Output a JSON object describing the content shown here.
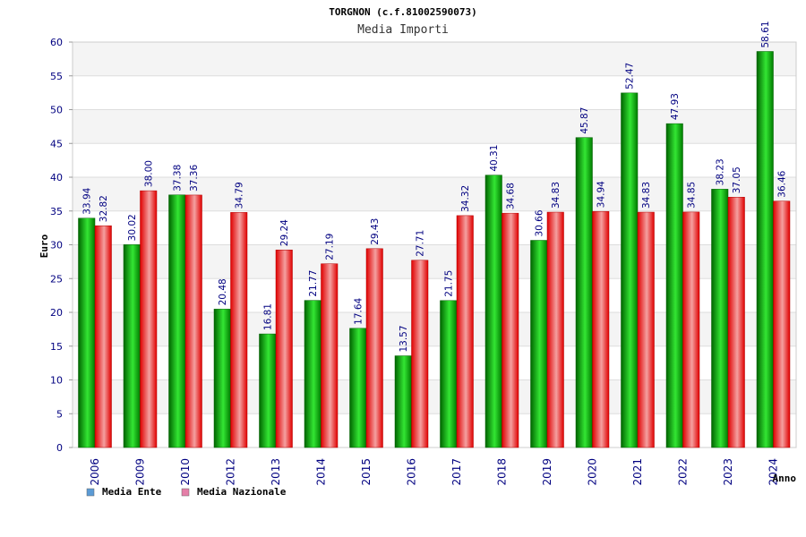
{
  "chart_data": {
    "type": "bar",
    "title": "TORGNON (c.f.81002590073)",
    "subtitle": "Media Importi",
    "xlabel": "Anno",
    "ylabel": "Euro",
    "ylim": [
      0,
      60
    ],
    "yticks": [
      "0",
      "5",
      "10",
      "15",
      "20",
      "25",
      "30",
      "35",
      "40",
      "45",
      "50",
      "55",
      "60"
    ],
    "grid": true,
    "legend_position": "bottom-left",
    "categories": [
      "2006",
      "2009",
      "2010",
      "2012",
      "2013",
      "2014",
      "2015",
      "2016",
      "2017",
      "2018",
      "2019",
      "2020",
      "2021",
      "2022",
      "2023",
      "2024"
    ],
    "series": [
      {
        "name": "Media Ente",
        "color": "#00b000",
        "values": [
          33.94,
          30.02,
          37.38,
          20.48,
          16.81,
          21.77,
          17.64,
          13.57,
          21.75,
          40.31,
          30.66,
          45.87,
          52.47,
          47.93,
          38.23,
          58.61
        ],
        "labels": [
          "33.94",
          "30.02",
          "37.38",
          "20.48",
          "16.81",
          "21.77",
          "17.64",
          "13.57",
          "21.75",
          "40.31",
          "30.66",
          "45.87",
          "52.47",
          "47.93",
          "38.23",
          "58.61"
        ]
      },
      {
        "name": "Media Nazionale",
        "color": "#e01010",
        "values": [
          32.82,
          38.0,
          37.36,
          34.79,
          29.24,
          27.19,
          29.43,
          27.71,
          34.32,
          34.68,
          34.83,
          34.94,
          34.83,
          34.85,
          37.05,
          36.46
        ],
        "labels": [
          "32.82",
          "38.00",
          "37.36",
          "34.79",
          "29.24",
          "27.19",
          "29.43",
          "27.71",
          "34.32",
          "34.68",
          "34.83",
          "34.94",
          "34.83",
          "34.85",
          "37.05",
          "36.46"
        ]
      }
    ],
    "legend": [
      {
        "label": "Media Ente",
        "swatch": "#5b9bd5"
      },
      {
        "label": "Media Nazionale",
        "swatch": "#e57fa8"
      }
    ]
  }
}
